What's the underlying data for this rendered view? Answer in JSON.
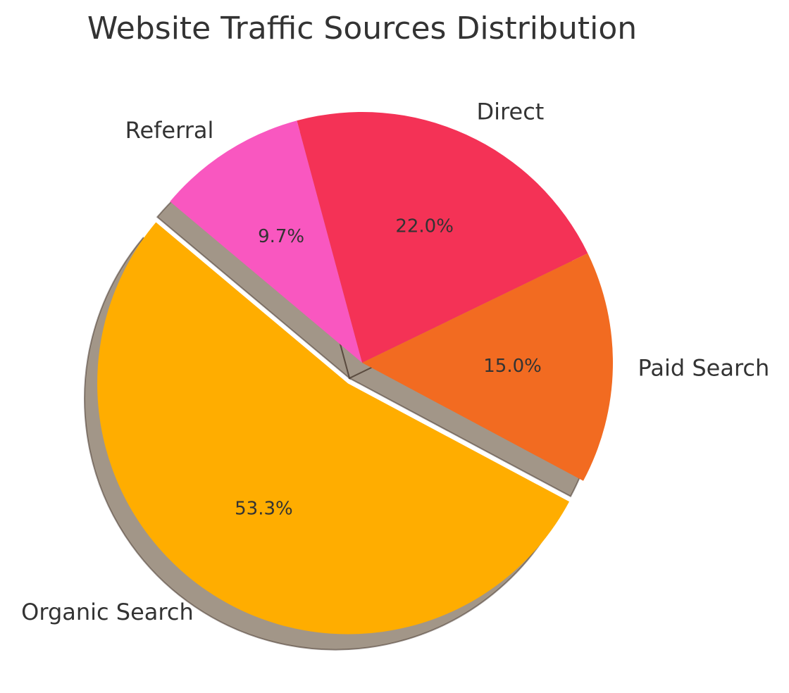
{
  "chart_data": {
    "type": "pie",
    "title": "Website Traffic Sources Distribution",
    "slices": [
      {
        "label": "Organic Search",
        "value": 53.3,
        "pct_label": "53.3%",
        "color": "#FFAD00",
        "explode": true
      },
      {
        "label": "Paid Search",
        "value": 15.0,
        "pct_label": "15.0%",
        "color": "#F26B21",
        "explode": false
      },
      {
        "label": "Direct",
        "value": 22.0,
        "pct_label": "22.0%",
        "color": "#F43256",
        "explode": false
      },
      {
        "label": "Referral",
        "value": 9.7,
        "pct_label": "9.7%",
        "color": "#F957C0",
        "explode": false
      }
    ],
    "start_angle_deg": 140,
    "shadow": true,
    "legend": false
  },
  "colors": {
    "text": "#333333",
    "shadow": "#7a6a55"
  }
}
